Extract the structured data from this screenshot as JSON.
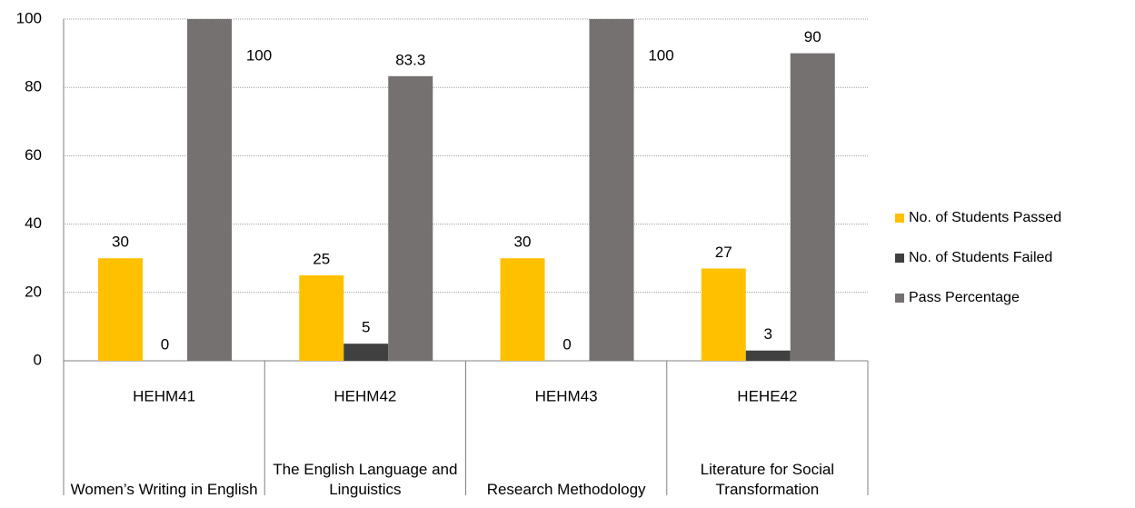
{
  "chart_data": {
    "type": "bar",
    "categories": [
      "HEHM41",
      "HEHM42",
      "HEHM43",
      "HEHE42"
    ],
    "category_names": [
      "Women’s Writing in English",
      "The English Language and Linguistics",
      "Research Methodology",
      "Literature for Social Transformation"
    ],
    "series": [
      {
        "name": "No. of Students Passed",
        "color": "#ffc000",
        "values": [
          30,
          25,
          30,
          27
        ]
      },
      {
        "name": "No. of Students Failed",
        "color": "#404040",
        "values": [
          0,
          5,
          0,
          3
        ]
      },
      {
        "name": "Pass Percentage",
        "color": "#767171",
        "values": [
          100,
          83.3,
          100,
          90
        ]
      }
    ],
    "ylim": [
      0,
      100
    ],
    "yticks": [
      0,
      20,
      40,
      60,
      80,
      100
    ],
    "grid": true,
    "legend": "right"
  }
}
